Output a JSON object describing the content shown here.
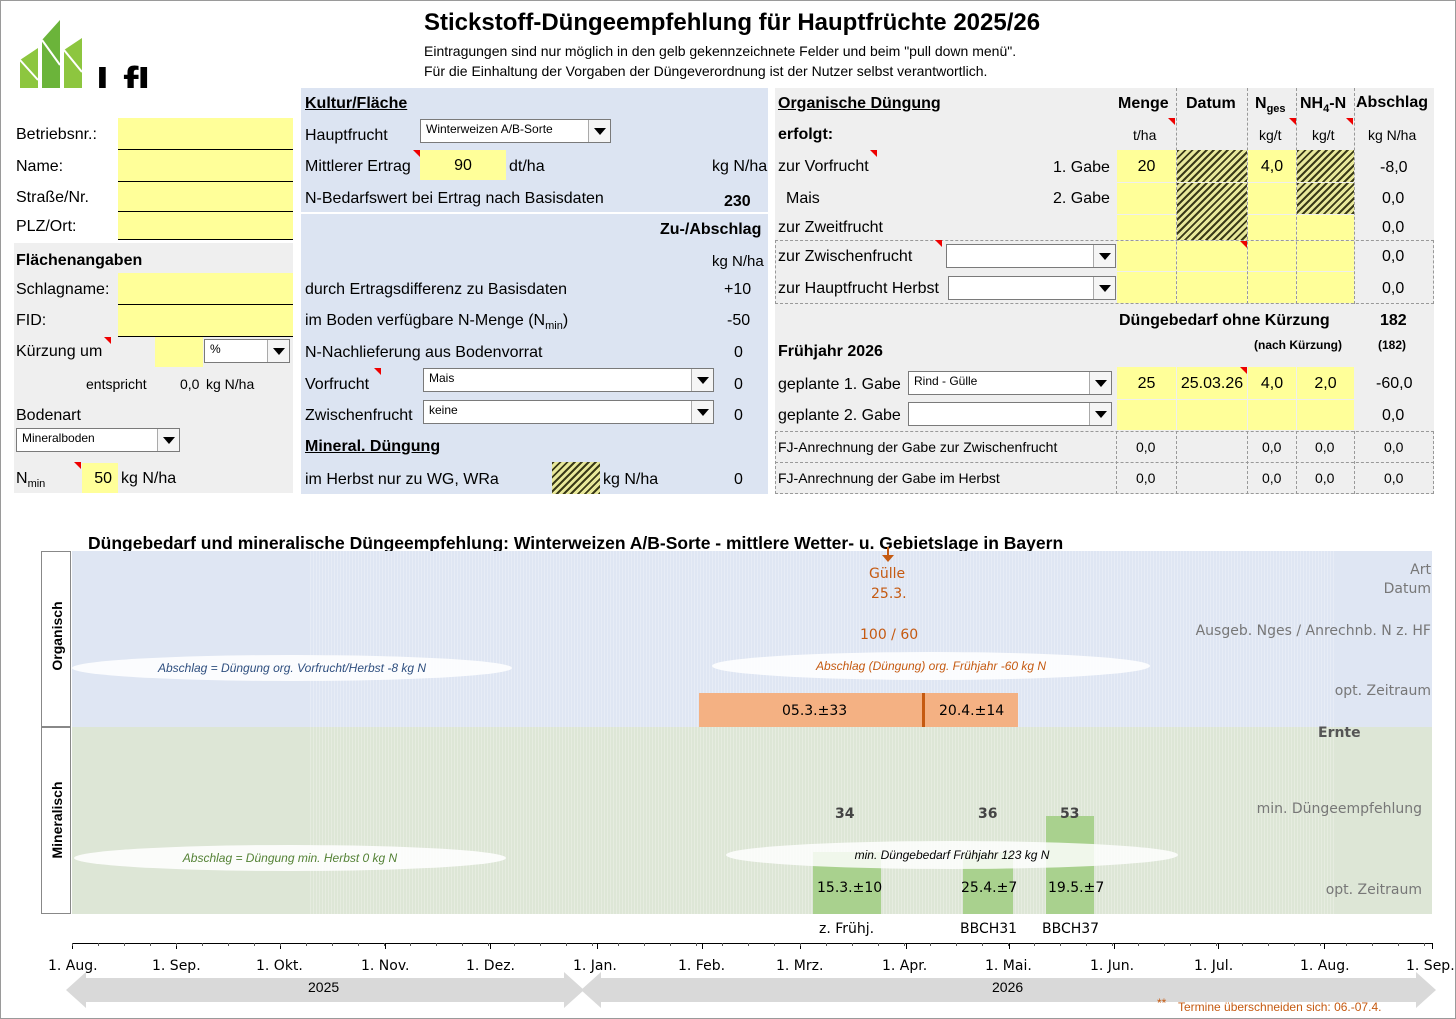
{
  "header": {
    "title": "Stickstoff-Düngeempfehlung für Hauptfrüchte 2025/26",
    "note1": "Eintragungen sind nur möglich in den gelb gekennzeichnete Felder und beim \"pull down menü\".",
    "note2": "Für die Einhaltung der Vorgaben der Düngeverordnung ist der Nutzer selbst verantwortlich.",
    "logo_text": "LfL"
  },
  "left": {
    "betrieb_label": "Betriebsnr.:",
    "name_label": "Name:",
    "strasse_label": "Straße/Nr.",
    "plz_label": "PLZ/Ort:",
    "flaechen_title": "Flächenangaben",
    "schlag_label": "Schlagname:",
    "fid_label": "FID:",
    "kuerzung_label": "Kürzung um",
    "kuerzung_unit": "%",
    "entspricht_label": "entspricht",
    "entspricht_value": "0,0",
    "entspricht_unit": "kg N/ha",
    "bodenart_label": "Bodenart",
    "bodenart_value": "Mineralboden",
    "nmin_label": "N",
    "nmin_sub": "min",
    "nmin_value": "50",
    "nmin_unit": "kg N/ha"
  },
  "kultur": {
    "title": "Kultur/Fläche",
    "hauptfrucht_label": "Hauptfrucht",
    "hauptfrucht_value": "Winterweizen A/B-Sorte",
    "ertrag_label": "Mittlerer Ertrag",
    "ertrag_value": "90",
    "ertrag_unit": "dt/ha",
    "kgnha": "kg N/ha",
    "bedarf_label": "N-Bedarfswert bei Ertrag nach Basisdaten",
    "bedarf_value": "230",
    "zuab_title": "Zu-/Abschlag",
    "zuab_unit": "kg N/ha",
    "row1_label": "durch Ertragsdifferenz zu Basisdaten",
    "row1_value": "+10",
    "row2_label": "im Boden verfügbare N-Menge (N",
    "row2_sub": "min",
    "row2_end": ")",
    "row2_value": "-50",
    "row3_label": "N-Nachlieferung aus Bodenvorrat",
    "row3_value": "0",
    "vorfrucht_label": "Vorfrucht",
    "vorfrucht_value": "Mais",
    "vorfrucht_num": "0",
    "zwischen_label": "Zwischenfrucht",
    "zwischen_value": "keine",
    "zwischen_num": "0",
    "mineral_title": "Mineral. Düngung",
    "herbst_label": "im Herbst nur zu WG, WRa",
    "herbst_unit": "kg N/ha",
    "herbst_value": "0"
  },
  "organic": {
    "title": "Organische Düngung",
    "erfolgt": "erfolgt:",
    "col_menge": "Menge",
    "col_datum": "Datum",
    "col_nges": "N",
    "col_nges_sub": "ges",
    "col_nh4": "NH",
    "col_nh4_sub": "4",
    "col_nh4_end": "-N",
    "col_abschlag": "Abschlag",
    "unit_menge": "t/ha",
    "unit_nges": "kg/t",
    "unit_nh4": "kg/t",
    "unit_abschlag": "kg N/ha",
    "vorfrucht_label": "zur Vorfrucht",
    "gabe1": "1. Gabe",
    "gabe1_menge": "20",
    "gabe1_nges": "4,0",
    "gabe1_abschlag": "-8,0",
    "mais": "Mais",
    "gabe2": "2. Gabe",
    "gabe2_abschlag": "0,0",
    "zweit_label": "zur Zweitfrucht",
    "zweit_abschlag": "0,0",
    "zwischen_label": "zur Zwischenfrucht",
    "zwischen_abschlag": "0,0",
    "haupt_label": "zur Hauptfrucht Herbst",
    "haupt_abschlag": "0,0",
    "bedarf_label": "Düngebedarf ohne Kürzung",
    "bedarf_value": "182",
    "nach_label": "(nach Kürzung)",
    "nach_value": "(182)",
    "fj_title": "Frühjahr 2026",
    "g1_label": "geplante 1. Gabe",
    "g1_type": "Rind - Gülle",
    "g1_menge": "25",
    "g1_datum": "25.03.26",
    "g1_nges": "4,0",
    "g1_nh4": "2,0",
    "g1_abschlag": "-60,0",
    "g2_label": "geplante 2. Gabe",
    "g2_abschlag": "0,0",
    "fj1_label": "FJ-Anrechnung der Gabe zur Zwischenfrucht",
    "fj1_v": [
      "0,0",
      "0,0",
      "0,0",
      "0,0"
    ],
    "fj2_label": "FJ-Anrechnung der Gabe im Herbst",
    "fj2_v": [
      "0,0",
      "0,0",
      "0,0",
      "0,0"
    ]
  },
  "chart": {
    "title": "Düngebedarf und mineralische Düngeempfehlung: Winterweizen A/B-Sorte - mittlere Wetter- u. Gebietslage in Bayern",
    "organisch": "Organisch",
    "mineralisch": "Mineralisch",
    "r_art": "Art",
    "r_datum": "Datum",
    "r_ausgeb": "Ausgeb. Nges / Anrechnb. N z. HF",
    "r_opt1": "opt. Zeitraum",
    "r_ernte": "Ernte",
    "r_min": "min. Düngeempfehlung",
    "r_opt2": "opt. Zeitraum",
    "guelle": "Gülle",
    "guelle_date": "25.3.",
    "guelle_vals": "100 / 60",
    "ell1": "Abschlag = Düngung org. Vorfrucht/Herbst -8 kg N",
    "ell2": "Abschlag (Düngung) org. Frühjahr -60 kg N",
    "ell3": "Abschlag = Düngung min. Herbst 0 kg N",
    "ell4": "min. Düngebedarf Frühjahr 123 kg N",
    "org_bar1": "05.3.±33",
    "org_bar2": "20.4.±14",
    "mins": [
      {
        "value": "34",
        "date": "15.3.±10",
        "stage": "z. Frühj."
      },
      {
        "value": "36",
        "date": "25.4.±7",
        "stage": "BBCH31"
      },
      {
        "value": "53",
        "date": "19.5.±7",
        "stage": "BBCH37"
      }
    ],
    "months": [
      "1. Aug.",
      "1. Sep.",
      "1. Okt.",
      "1. Nov.",
      "1. Dez.",
      "1. Jan.",
      "1. Feb.",
      "1. Mrz.",
      "1. Apr.",
      "1. Mai.",
      "1. Jun.",
      "1. Jul.",
      "1. Aug.",
      "1. Sep."
    ],
    "year1": "2025",
    "year2": "2026",
    "footnote_star": "**",
    "footnote": "Termine überschneiden sich: 06.-07.4."
  },
  "colors": {
    "yellow": "#ffff99",
    "blue": "#dce4f2",
    "green": "#b6d7a0",
    "orange": "#f4b183",
    "brown": "#c55a11"
  }
}
